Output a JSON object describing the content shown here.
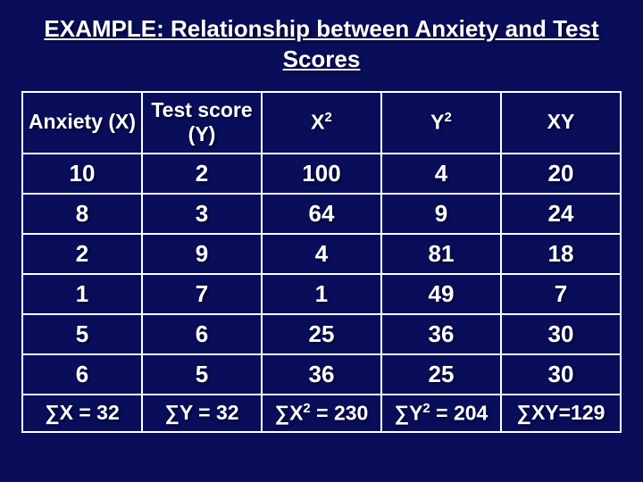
{
  "title": "EXAMPLE: Relationship between Anxiety and Test Scores",
  "table": {
    "headers": {
      "c0": "Anxiety (X)",
      "c1": "Test score (Y)",
      "c2_base": "X",
      "c2_sup": "2",
      "c3_base": "Y",
      "c3_sup": "2",
      "c4": "XY"
    },
    "rows": [
      {
        "c0": "10",
        "c1": "2",
        "c2": "100",
        "c3": "4",
        "c4": "20"
      },
      {
        "c0": "8",
        "c1": "3",
        "c2": "64",
        "c3": "9",
        "c4": "24"
      },
      {
        "c0": "2",
        "c1": "9",
        "c2": "4",
        "c3": "81",
        "c4": "18"
      },
      {
        "c0": "1",
        "c1": "7",
        "c2": "1",
        "c3": "49",
        "c4": "7"
      },
      {
        "c0": "5",
        "c1": "6",
        "c2": "25",
        "c3": "36",
        "c4": "30"
      },
      {
        "c0": "6",
        "c1": "5",
        "c2": "36",
        "c3": "25",
        "c4": "30"
      }
    ],
    "sums": {
      "c0": "∑X = 32",
      "c1": "∑Y = 32",
      "c2_pre": "∑X",
      "c2_sup": "2",
      "c2_post": " = 230",
      "c3_pre": "∑Y",
      "c3_sup": "2",
      "c3_post": " = 204",
      "c4": "∑XY=129"
    }
  },
  "style": {
    "background_color": "#0a0e5a",
    "text_color": "#ffffff",
    "border_color": "#ffffff",
    "title_fontsize": 26,
    "header_fontsize": 23,
    "cell_fontsize": 26,
    "sum_fontsize": 23
  }
}
